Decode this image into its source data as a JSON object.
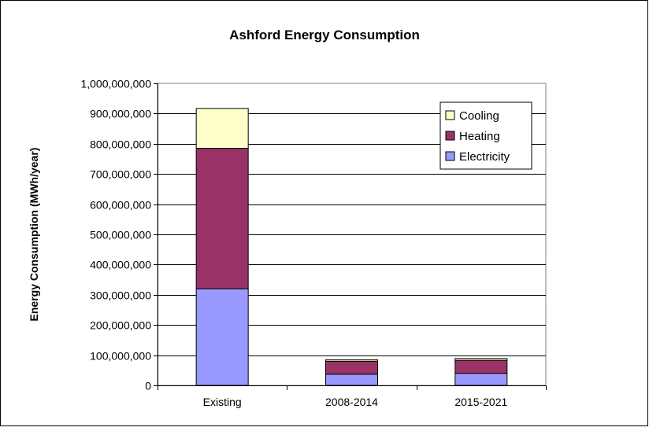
{
  "chart_data": {
    "type": "bar",
    "stacked": true,
    "title": "Ashford Energy Consumption",
    "xlabel": "",
    "ylabel": "Energy Consumption (MWh/year)",
    "categories": [
      "Existing",
      "2008-2014",
      "2015-2021"
    ],
    "series": [
      {
        "name": "Electricity",
        "color": "#9999FF",
        "values": [
          320000000,
          37000000,
          40000000
        ]
      },
      {
        "name": "Heating",
        "color": "#993366",
        "values": [
          465000000,
          43000000,
          43000000
        ]
      },
      {
        "name": "Cooling",
        "color": "#FFFFCC",
        "values": [
          132000000,
          5000000,
          6000000
        ]
      }
    ],
    "ylim": [
      0,
      1000000000
    ],
    "ytick_step": 100000000,
    "yticks": [
      "0",
      "100,000,000",
      "200,000,000",
      "300,000,000",
      "400,000,000",
      "500,000,000",
      "600,000,000",
      "700,000,000",
      "800,000,000",
      "900,000,000",
      "1,000,000,000"
    ],
    "grid": true,
    "legend_position": "top-right",
    "legend_order": [
      "Cooling",
      "Heating",
      "Electricity"
    ]
  }
}
